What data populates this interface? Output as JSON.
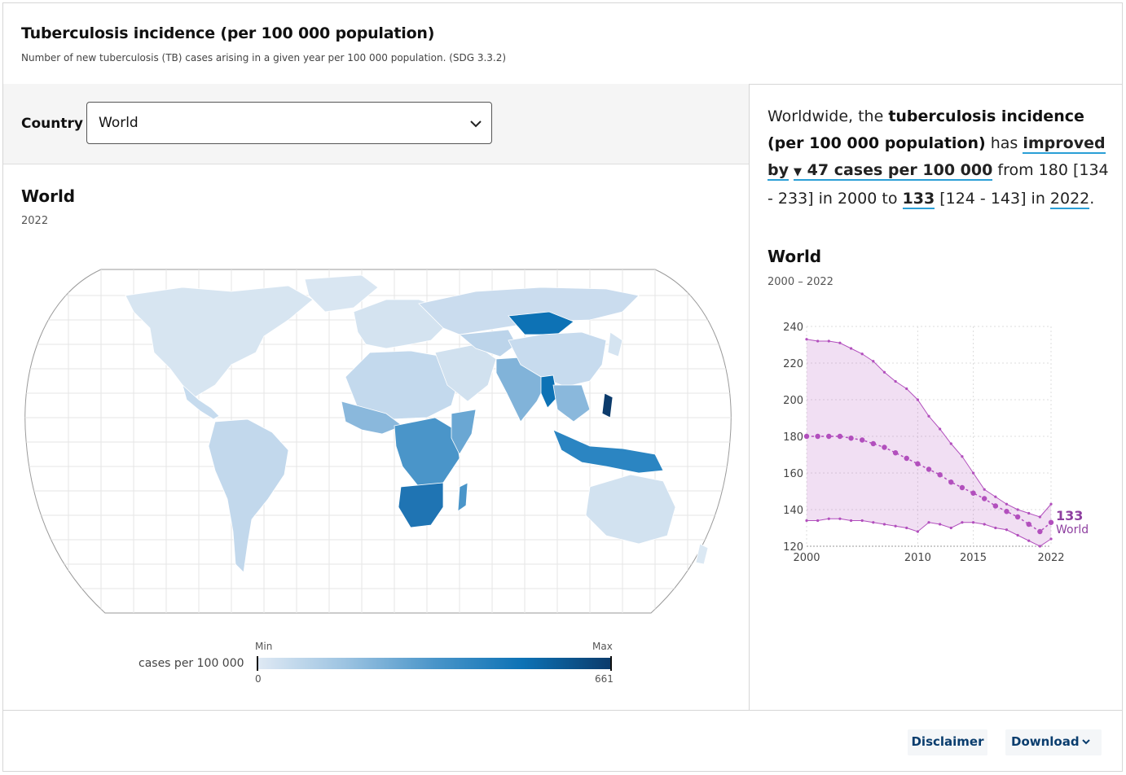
{
  "header": {
    "title": "Tuberculosis incidence (per 100 000 population)",
    "subtitle": "Number of new tuberculosis (TB) cases arising in a given year per 100 000 population. (SDG 3.3.2)"
  },
  "filter": {
    "label": "Country",
    "selected": "World"
  },
  "map": {
    "title": "World",
    "year": "2022",
    "legend_label": "cases per 100 000",
    "legend_min_label": "Min",
    "legend_max_label": "Max",
    "legend_min_value": "0",
    "legend_max_value": "661",
    "colors": [
      "#dfe9f4",
      "#9cc3e1",
      "#4a95c9",
      "#0d72b5",
      "#0c3b6b"
    ]
  },
  "summary": {
    "lead": "Worldwide, the",
    "indicator": "tuberculosis incidence (per 100 000 population)",
    "has": "has",
    "trend": "improved by",
    "change_arrow": "▼",
    "change": "47 cases per 100 000",
    "from_text": "from 180 [134 - 233] in 2000 to",
    "latest": "133",
    "latest_ci": "[124 - 143] in",
    "latest_year": "2022",
    "end": "."
  },
  "chart": {
    "title": "World",
    "range": "2000 – 2022",
    "end_value_label": "133",
    "end_series_label": "World",
    "accent": "#b24fbd"
  },
  "chart_data": {
    "type": "line",
    "x": [
      2000,
      2001,
      2002,
      2003,
      2004,
      2005,
      2006,
      2007,
      2008,
      2009,
      2010,
      2011,
      2012,
      2013,
      2014,
      2015,
      2016,
      2017,
      2018,
      2019,
      2020,
      2021,
      2022
    ],
    "series": [
      {
        "name": "World",
        "values": [
          180,
          180,
          180,
          180,
          179,
          178,
          176,
          174,
          171,
          168,
          165,
          162,
          159,
          155,
          152,
          149,
          146,
          142,
          139,
          136,
          132,
          128,
          133
        ]
      }
    ],
    "lower": [
      134,
      134,
      135,
      135,
      134,
      134,
      133,
      132,
      131,
      130,
      128,
      133,
      132,
      130,
      133,
      133,
      132,
      130,
      129,
      126,
      123,
      120,
      124
    ],
    "upper": [
      233,
      232,
      232,
      231,
      228,
      225,
      221,
      215,
      210,
      206,
      200,
      191,
      184,
      176,
      169,
      160,
      151,
      147,
      143,
      140,
      138,
      136,
      143
    ],
    "xticks": [
      "2000",
      "2010",
      "2015",
      "2022"
    ],
    "yticks": [
      "120",
      "140",
      "160",
      "180",
      "200",
      "220",
      "240"
    ],
    "ylim": [
      120,
      240
    ],
    "grid": true
  },
  "footer": {
    "disclaimer": "Disclaimer",
    "download": "Download"
  }
}
